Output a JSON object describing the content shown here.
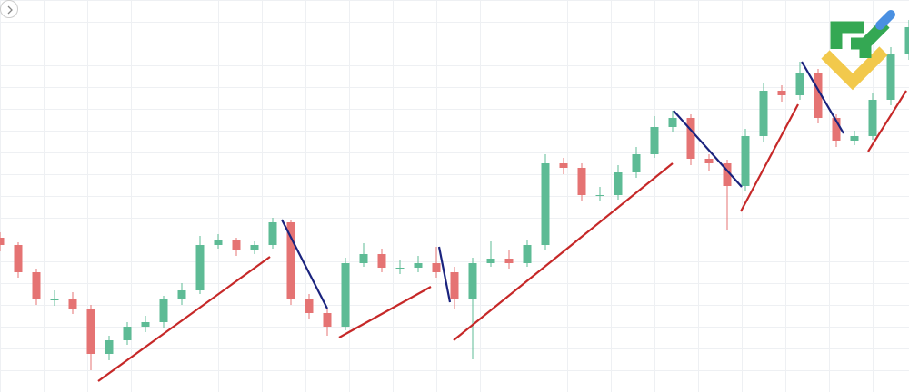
{
  "chart_data": {
    "type": "candlestick",
    "xlim": [
      0,
      50
    ],
    "ylim": [
      0,
      432
    ],
    "up_color": "#5dbb95",
    "down_color": "#e57373",
    "open": [
      170,
      162,
      132,
      102,
      102,
      92,
      42,
      57,
      72,
      77,
      102,
      112,
      162,
      167,
      157,
      162,
      187,
      102,
      87,
      72,
      142,
      152,
      137,
      137,
      142,
      132,
      102,
      142,
      147,
      142,
      162,
      252,
      247,
      217,
      217,
      242,
      262,
      292,
      302,
      257,
      252,
      227,
      282,
      332,
      327,
      352,
      302,
      277,
      282,
      322,
      372
    ],
    "high": [
      176,
      165,
      136,
      112,
      110,
      96,
      62,
      77,
      84,
      106,
      120,
      172,
      174,
      170,
      166,
      192,
      190,
      108,
      92,
      148,
      164,
      158,
      146,
      150,
      160,
      138,
      148,
      166,
      156,
      168,
      262,
      258,
      252,
      226,
      250,
      270,
      304,
      310,
      306,
      262,
      256,
      290,
      340,
      338,
      364,
      356,
      306,
      288,
      330,
      380,
      410
    ],
    "low": [
      155,
      126,
      96,
      95,
      86,
      24,
      35,
      52,
      66,
      70,
      96,
      108,
      158,
      150,
      152,
      158,
      96,
      80,
      62,
      68,
      138,
      132,
      130,
      132,
      126,
      92,
      36,
      138,
      136,
      138,
      156,
      240,
      210,
      210,
      212,
      236,
      258,
      286,
      250,
      244,
      178,
      222,
      276,
      320,
      322,
      296,
      270,
      272,
      278,
      316,
      366
    ],
    "close": [
      162,
      132,
      102,
      102,
      92,
      42,
      57,
      72,
      77,
      102,
      112,
      162,
      167,
      157,
      162,
      187,
      102,
      87,
      72,
      142,
      152,
      137,
      137,
      142,
      132,
      102,
      142,
      147,
      142,
      162,
      252,
      247,
      217,
      217,
      242,
      262,
      292,
      302,
      257,
      252,
      227,
      282,
      332,
      327,
      352,
      302,
      277,
      282,
      322,
      372,
      402
    ],
    "trend_lines": [
      {
        "color": "#c62828",
        "x": [
          5.4,
          14.85
        ],
        "y": [
          12,
          149
        ]
      },
      {
        "color": "#c62828",
        "x": [
          18.65,
          23.7
        ],
        "y": [
          60,
          116
        ]
      },
      {
        "color": "#c62828",
        "x": [
          24.95,
          37
        ],
        "y": [
          57,
          252
        ]
      },
      {
        "color": "#c62828",
        "x": [
          40.75,
          43.9
        ],
        "y": [
          199,
          317
        ]
      },
      {
        "color": "#c62828",
        "x": [
          47.75,
          49.85
        ],
        "y": [
          265,
          332
        ]
      },
      {
        "color": "#1a237e",
        "x": [
          15.5,
          18
        ],
        "y": [
          190,
          92
        ]
      },
      {
        "color": "#1a237e",
        "x": [
          24.15,
          24.75
        ],
        "y": [
          160,
          99
        ]
      },
      {
        "color": "#1a237e",
        "x": [
          37.05,
          40.8
        ],
        "y": [
          310,
          226
        ]
      },
      {
        "color": "#1a237e",
        "x": [
          44.1,
          46.4
        ],
        "y": [
          364,
          285
        ]
      }
    ]
  }
}
